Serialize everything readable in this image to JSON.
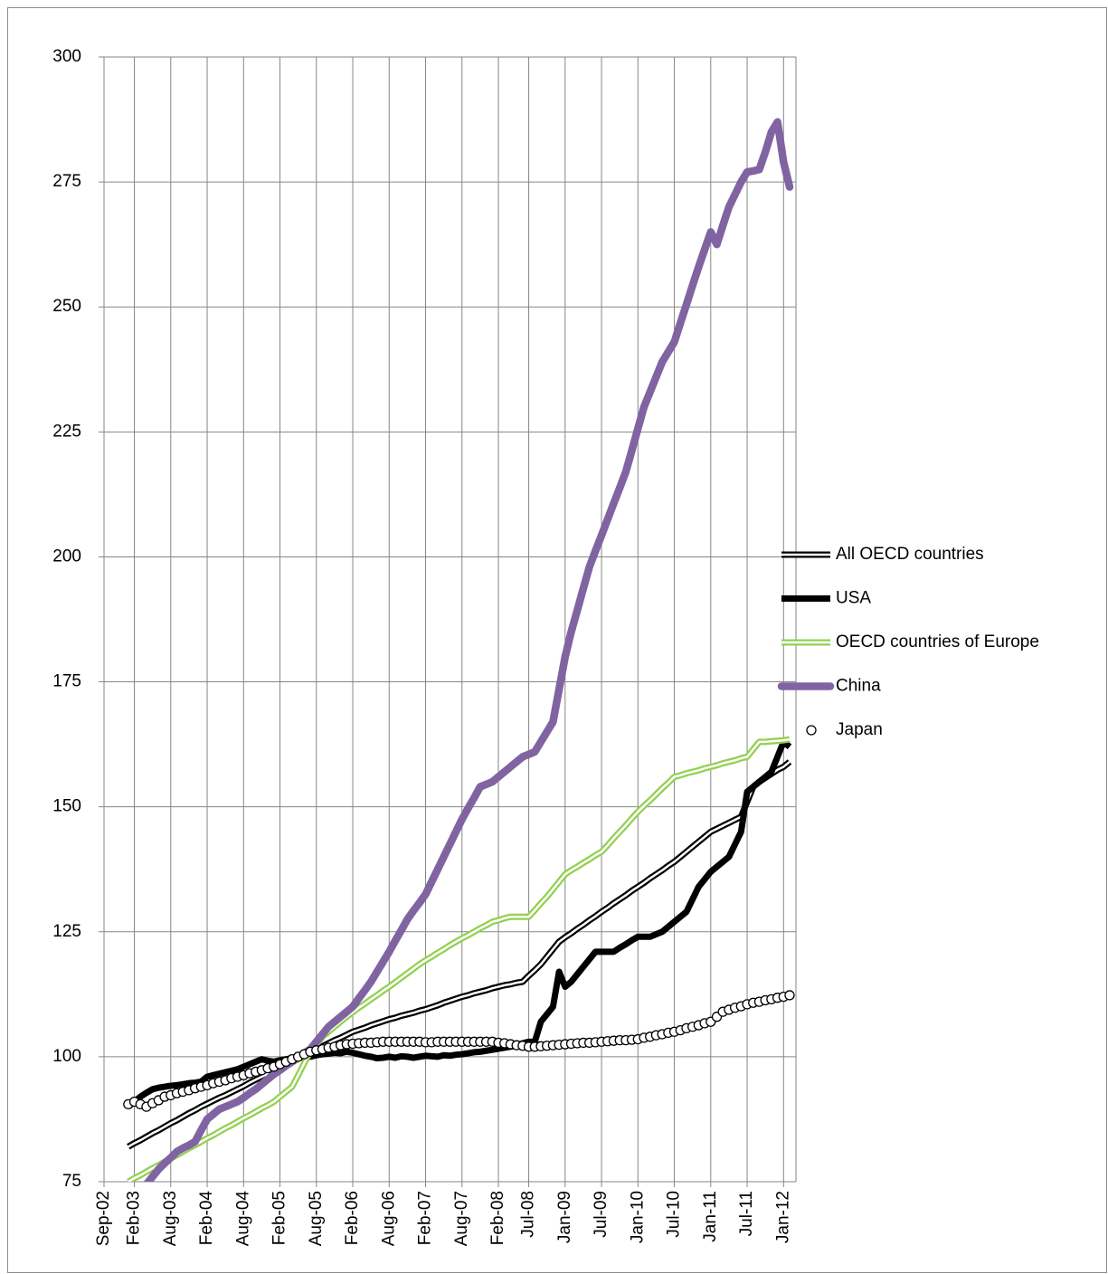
{
  "chart_data": {
    "type": "line",
    "x": [
      "Jan-03",
      "Feb-03",
      "Mar-03",
      "Apr-03",
      "May-03",
      "Jun-03",
      "Jul-03",
      "Aug-03",
      "Sep-03",
      "Oct-03",
      "Nov-03",
      "Dec-03",
      "Jan-04",
      "Feb-04",
      "Mar-04",
      "Apr-04",
      "May-04",
      "Jun-04",
      "Jul-04",
      "Aug-04",
      "Sep-04",
      "Oct-04",
      "Nov-04",
      "Dec-04",
      "Jan-05",
      "Feb-05",
      "Mar-05",
      "Apr-05",
      "May-05",
      "Jun-05",
      "Jul-05",
      "Aug-05",
      "Sep-05",
      "Oct-05",
      "Nov-05",
      "Dec-05",
      "Jan-06",
      "Feb-06",
      "Mar-06",
      "Apr-06",
      "May-06",
      "Jun-06",
      "Jul-06",
      "Aug-06",
      "Sep-06",
      "Oct-06",
      "Nov-06",
      "Dec-06",
      "Jan-07",
      "Feb-07",
      "Mar-07",
      "Apr-07",
      "May-07",
      "Jun-07",
      "Jul-07",
      "Aug-07",
      "Sep-07",
      "Oct-07",
      "Nov-07",
      "Dec-07",
      "Jan-08",
      "Feb-08",
      "Mar-08",
      "Apr-08",
      "May-08",
      "Jun-08",
      "Jul-08",
      "Aug-08",
      "Sep-08",
      "Oct-08",
      "Nov-08",
      "Dec-08",
      "Jan-09",
      "Feb-09",
      "Mar-09",
      "Apr-09",
      "May-09",
      "Jun-09",
      "Jul-09",
      "Aug-09",
      "Sep-09",
      "Oct-09",
      "Nov-09",
      "Dec-09",
      "Jan-10",
      "Feb-10",
      "Mar-10",
      "Apr-10",
      "May-10",
      "Jun-10",
      "Jul-10",
      "Aug-10",
      "Sep-10",
      "Oct-10",
      "Nov-10",
      "Dec-10",
      "Jan-11",
      "Feb-11",
      "Mar-11",
      "Apr-11",
      "May-11",
      "Jun-11",
      "Jul-11",
      "Aug-11",
      "Sep-11",
      "Oct-11",
      "Nov-11",
      "Dec-11",
      "Jan-12",
      "Feb-12"
    ],
    "series": [
      {
        "name": "All OECD countries",
        "color": "#000000",
        "style": "double",
        "values": [
          82,
          82.7,
          83.3,
          84,
          84.7,
          85.3,
          86,
          86.7,
          87.3,
          88,
          88.7,
          89.3,
          90,
          90.6,
          91.2,
          91.8,
          92.3,
          92.9,
          93.5,
          94.1,
          94.8,
          95.4,
          96,
          96.6,
          97.3,
          98,
          98.6,
          99.2,
          99.8,
          100.3,
          100.9,
          101.5,
          102.1,
          102.7,
          103.3,
          103.8,
          104.4,
          105,
          105.4,
          105.8,
          106.3,
          106.7,
          107.1,
          107.5,
          107.8,
          108.2,
          108.5,
          108.8,
          109.2,
          109.5,
          109.9,
          110.3,
          110.8,
          111.2,
          111.6,
          112,
          112.3,
          112.7,
          113,
          113.3,
          113.7,
          114,
          114.3,
          114.5,
          114.8,
          115,
          116.2,
          117.3,
          118.5,
          120,
          121.5,
          123,
          123.9,
          124.7,
          125.6,
          126.4,
          127.3,
          128.1,
          129,
          129.8,
          130.7,
          131.5,
          132.3,
          133.2,
          134,
          134.8,
          135.7,
          136.5,
          137.3,
          138.2,
          139,
          140,
          141,
          142,
          143,
          144,
          145,
          145.6,
          146.2,
          146.8,
          147.4,
          148,
          151,
          154,
          155,
          155.8,
          156.6,
          157.4,
          158,
          159
        ]
      },
      {
        "name": "USA",
        "color": "#000000",
        "style": "solid",
        "values": [
          90,
          91,
          92,
          92.8,
          93.5,
          93.8,
          94,
          94.2,
          94.3,
          94.5,
          94.7,
          94.8,
          95,
          96,
          96.3,
          96.6,
          96.9,
          97.2,
          97.5,
          98,
          98.5,
          99,
          99.5,
          99.2,
          99,
          99.3,
          99.5,
          99.7,
          99.8,
          99.9,
          100,
          100.3,
          100.5,
          100.6,
          100.8,
          100.7,
          101,
          100.8,
          100.5,
          100.2,
          100,
          99.7,
          99.8,
          100,
          99.8,
          100.1,
          100,
          99.8,
          100,
          100.2,
          100.1,
          100,
          100.3,
          100.2,
          100.4,
          100.5,
          100.7,
          100.9,
          101,
          101.2,
          101.4,
          101.6,
          101.8,
          102,
          102.3,
          102.7,
          103,
          103,
          107,
          108.5,
          110,
          117,
          114,
          115,
          116.5,
          118,
          119.5,
          121,
          121,
          121,
          121,
          121.8,
          122.5,
          123.3,
          124,
          124,
          124,
          124.5,
          125,
          126,
          127,
          128,
          129,
          131.5,
          134,
          135.5,
          137,
          138,
          139,
          140,
          142.5,
          145,
          153,
          154,
          155,
          156,
          157,
          160,
          163,
          162
        ]
      },
      {
        "name": "OECD countries of Europe",
        "color": "#92d050",
        "style": "double",
        "values": [
          75,
          75.7,
          76.3,
          77,
          77.7,
          78.3,
          79,
          79.7,
          80.3,
          81,
          81.7,
          82.3,
          83,
          83.7,
          84.3,
          85,
          85.7,
          86.3,
          87,
          87.7,
          88.3,
          89,
          89.7,
          90.3,
          91,
          92,
          93,
          94,
          96.3,
          98.7,
          101,
          102.5,
          104,
          105,
          106,
          107,
          108,
          108.9,
          109.8,
          110.6,
          111.5,
          112.3,
          113.2,
          114,
          114.9,
          115.8,
          116.7,
          117.6,
          118.5,
          119.3,
          120,
          120.8,
          121.5,
          122.3,
          123,
          123.7,
          124.3,
          125,
          125.7,
          126.3,
          127,
          127.3,
          127.7,
          128,
          128,
          128,
          128,
          129.3,
          130.7,
          132,
          133.5,
          135,
          136.5,
          137.3,
          138,
          138.8,
          139.5,
          140.3,
          141,
          142.3,
          143.7,
          145,
          146.3,
          147.7,
          149,
          150.2,
          151.3,
          152.5,
          153.7,
          154.8,
          156,
          156.3,
          156.7,
          157,
          157.3,
          157.7,
          158,
          158.3,
          158.7,
          159,
          159.3,
          159.7,
          160,
          161.5,
          163,
          163,
          163.1,
          163.2,
          163.3,
          163.5
        ]
      },
      {
        "name": "China",
        "color": "#8064a2",
        "style": "thick",
        "values": [
          68,
          70,
          72,
          74.5,
          76,
          77.5,
          78.7,
          79.8,
          81,
          81.7,
          82.3,
          83,
          85.3,
          87.5,
          88.5,
          89.5,
          90,
          90.5,
          91,
          91.8,
          92.7,
          93.5,
          94.5,
          95.5,
          96.5,
          97.3,
          98.2,
          99,
          99.8,
          100.7,
          101.5,
          103,
          104.5,
          106,
          107,
          108,
          109,
          110,
          111.7,
          113.3,
          115,
          117,
          119,
          121,
          123.2,
          125.3,
          127.5,
          129.2,
          130.8,
          132.5,
          135,
          137.5,
          140,
          142.5,
          145,
          147.5,
          149.7,
          151.8,
          154,
          154.5,
          155,
          156,
          157,
          158,
          159,
          160,
          160.5,
          161,
          163,
          165,
          167,
          173.5,
          180,
          185,
          189.3,
          193.7,
          198,
          201.2,
          204.3,
          207.5,
          210.7,
          213.8,
          217,
          221.3,
          225.7,
          230,
          233,
          236,
          239,
          241,
          243,
          246.8,
          250.5,
          254.3,
          258,
          261.5,
          265,
          262.5,
          266.3,
          270,
          272.5,
          275,
          277,
          277.2,
          277.5,
          281,
          285,
          287,
          279,
          274
        ]
      },
      {
        "name": "Japan",
        "color": "#000000",
        "style": "markers",
        "values": [
          90.5,
          91,
          90.5,
          90,
          90.7,
          91.3,
          92,
          92.3,
          92.7,
          93,
          93.3,
          93.7,
          94,
          94.3,
          94.7,
          95,
          95.3,
          95.7,
          96,
          96.3,
          96.7,
          97,
          97.3,
          97.7,
          98,
          98.5,
          99,
          99.5,
          100,
          100.5,
          101,
          101.3,
          101.5,
          101.8,
          102,
          102.3,
          102.5,
          102.6,
          102.7,
          102.8,
          102.8,
          102.9,
          103,
          103,
          103,
          103,
          103,
          103,
          103,
          102.9,
          102.9,
          103,
          103,
          103,
          103,
          103,
          103,
          103,
          103,
          103,
          103,
          102.8,
          102.7,
          102.5,
          102.3,
          102.2,
          102,
          102,
          102.1,
          102.2,
          102.3,
          102.4,
          102.5,
          102.6,
          102.7,
          102.8,
          102.8,
          102.9,
          103,
          103.1,
          103.2,
          103.3,
          103.3,
          103.4,
          103.5,
          103.8,
          104,
          104.3,
          104.5,
          104.8,
          105,
          105.3,
          105.7,
          106,
          106.3,
          106.7,
          107,
          108,
          109,
          109.4,
          109.8,
          110.1,
          110.5,
          110.8,
          111,
          111.3,
          111.5,
          111.8,
          112,
          112.3
        ]
      }
    ],
    "xlim": [
      "Sep-02",
      "Feb-12"
    ],
    "xticks": [
      "Sep-02",
      "Feb-03",
      "Aug-03",
      "Feb-04",
      "Aug-04",
      "Feb-05",
      "Aug-05",
      "Feb-06",
      "Aug-06",
      "Feb-07",
      "Aug-07",
      "Feb-08",
      "Jul-08",
      "Jan-09",
      "Jul-09",
      "Jan-10",
      "Jul-10",
      "Jan-11",
      "Jul-11",
      "Jan-12"
    ],
    "ylim": [
      75,
      300
    ],
    "yticks": [
      75,
      100,
      125,
      150,
      175,
      200,
      225,
      250,
      275,
      300
    ],
    "grid": true,
    "legend": "right"
  }
}
